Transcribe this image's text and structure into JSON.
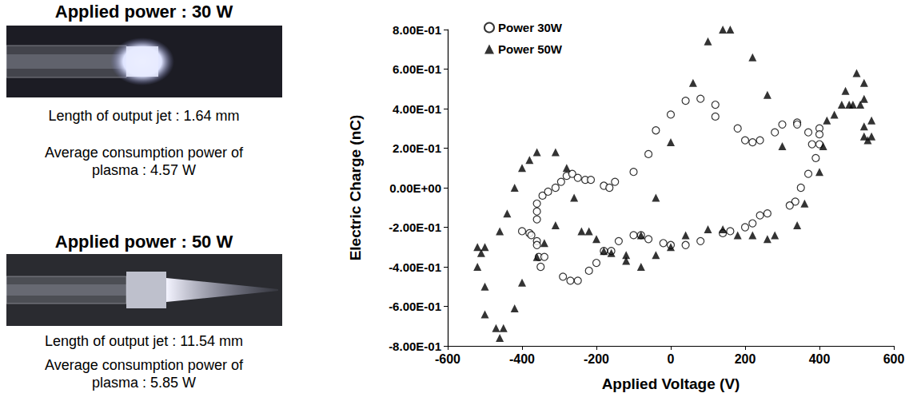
{
  "chart_data": {
    "type": "scatter",
    "x_label": "Applied Voltage (V)",
    "y_label": "Electric Charge (nC)",
    "xlim": [
      -600,
      600
    ],
    "xticks": [
      -600,
      -400,
      -200,
      0,
      200,
      400,
      600
    ],
    "ylim": [
      -0.8,
      0.8
    ],
    "yticks": [
      {
        "value": -0.8,
        "label": "-8.00E-01"
      },
      {
        "value": -0.6,
        "label": "-6.00E-01"
      },
      {
        "value": -0.4,
        "label": "-4.00E-01"
      },
      {
        "value": -0.2,
        "label": "-2.00E-01"
      },
      {
        "value": 0,
        "label": "0.00E+00"
      },
      {
        "value": 0.2,
        "label": "2.00E-01"
      },
      {
        "value": 0.4,
        "label": "4.00E-01"
      },
      {
        "value": 0.6,
        "label": "6.00E-01"
      },
      {
        "value": 0.8,
        "label": "8.00E-01"
      }
    ],
    "grid": false,
    "legend": "upper left",
    "series": [
      {
        "name": "Power 30W",
        "color": "#000000",
        "marker": "open circle",
        "x": [
          -400,
          -380,
          -375,
          -360,
          -360,
          -355,
          -350,
          -360,
          -360,
          -360,
          -345,
          -330,
          -310,
          -295,
          -280,
          -265,
          -250,
          -230,
          -215,
          -180,
          -165,
          -150,
          -100,
          -60,
          -40,
          0,
          40,
          80,
          120,
          120,
          180,
          200,
          220,
          240,
          280,
          300,
          340,
          340,
          370,
          380,
          400,
          400,
          400,
          390,
          370,
          350,
          335,
          320,
          260,
          240,
          220,
          200,
          160,
          140,
          80,
          40,
          0,
          -20,
          -60,
          -80,
          -100,
          -140,
          -160,
          -180,
          -200,
          -220,
          -250,
          -270,
          -290,
          -340
        ],
        "values": [
          -0.22,
          -0.23,
          -0.24,
          -0.27,
          -0.29,
          -0.35,
          -0.4,
          -0.16,
          -0.12,
          -0.08,
          -0.04,
          -0.02,
          0,
          0.03,
          0.06,
          0.07,
          0.05,
          0.04,
          0.04,
          0.01,
          0,
          0.03,
          0.08,
          0.17,
          0.29,
          0.37,
          0.44,
          0.45,
          0.42,
          0.36,
          0.3,
          0.24,
          0.23,
          0.24,
          0.28,
          0.32,
          0.33,
          0.32,
          0.28,
          0.22,
          0.3,
          0.27,
          0.22,
          0.15,
          0.07,
          0,
          -0.07,
          -0.09,
          -0.13,
          -0.14,
          -0.18,
          -0.2,
          -0.22,
          -0.23,
          -0.27,
          -0.29,
          -0.29,
          -0.28,
          -0.26,
          -0.24,
          -0.24,
          -0.27,
          -0.32,
          -0.32,
          -0.38,
          -0.42,
          -0.47,
          -0.47,
          -0.45,
          -0.35
        ]
      },
      {
        "name": "Power 50W",
        "color": "#000000",
        "marker": "triangle",
        "x": [
          -520,
          -520,
          -510,
          -500,
          -500,
          -500,
          -470,
          -460,
          -450,
          -420,
          -400,
          -460,
          -440,
          -420,
          -400,
          -380,
          -360,
          -310,
          -280,
          -260,
          -240,
          -220,
          -200,
          -310,
          -360,
          -340,
          -180,
          -160,
          -120,
          -120,
          -80,
          -80,
          -40,
          -40,
          0,
          60,
          100,
          140,
          160,
          220,
          260,
          300,
          40,
          0,
          100,
          140,
          180,
          220,
          260,
          280,
          340,
          360,
          400,
          410,
          420,
          440,
          460,
          470,
          480,
          490,
          500,
          510,
          520,
          520,
          520,
          520,
          530,
          540,
          540
        ],
        "values": [
          -0.4,
          -0.3,
          -0.33,
          -0.3,
          -0.5,
          -0.64,
          -0.71,
          -0.76,
          -0.71,
          -0.61,
          -0.48,
          -0.22,
          -0.13,
          0,
          0.1,
          0.14,
          0.18,
          0.18,
          0.1,
          -0.05,
          -0.22,
          -0.22,
          -0.26,
          -0.19,
          -0.35,
          -0.28,
          -0.32,
          -0.33,
          -0.34,
          -0.37,
          -0.4,
          -0.24,
          -0.34,
          -0.05,
          0.23,
          0.53,
          0.74,
          0.8,
          0.8,
          0.66,
          0.47,
          0.21,
          -0.24,
          -0.3,
          -0.21,
          -0.21,
          -0.24,
          -0.24,
          -0.26,
          -0.24,
          -0.19,
          -0.08,
          0.08,
          0.21,
          0.34,
          0.37,
          0.42,
          0.49,
          0.42,
          0.42,
          0.58,
          0.42,
          0.53,
          0.45,
          0.31,
          0.26,
          0.24,
          0.26,
          0.34
        ]
      }
    ]
  },
  "photos": [
    {
      "title": "Applied power : 30 W",
      "jet_length": "Length of output jet : 1.64 mm",
      "plasma_power": "Average consumption power of plasma : 4.57 W"
    },
    {
      "title": "Applied power : 50 W",
      "jet_length": "Length of output jet : 11.54 mm",
      "plasma_power": "Average consumption power of plasma : 5.85 W"
    }
  ]
}
